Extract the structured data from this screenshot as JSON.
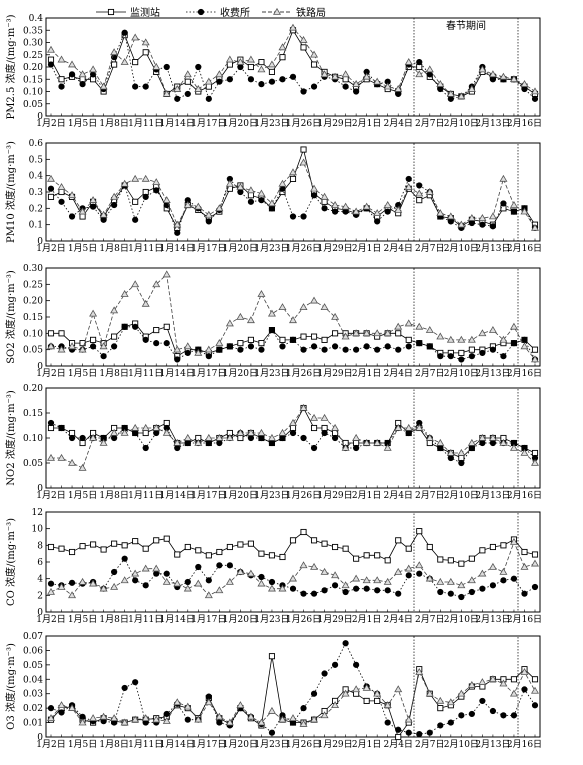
{
  "legend": [
    {
      "name": "监测站",
      "marker": "square",
      "dash": "solid"
    },
    {
      "name": "收费所",
      "marker": "circle",
      "dash": "dotted"
    },
    {
      "name": "铁路局",
      "marker": "triangle",
      "dash": "dashed"
    }
  ],
  "annotation": "春节期间",
  "x_ticks": [
    "1月2日",
    "1月5日",
    "1月8日",
    "1月11日",
    "1月14日",
    "1月17日",
    "1月20日",
    "1月23日",
    "1月26日",
    "1月29日",
    "2月1日",
    "2月4日",
    "2月7日",
    "2月10日",
    "2月13日",
    "2月16日"
  ],
  "chart_data": [
    {
      "type": "line",
      "ylabel": "PM2.5 浓度/(mg·m⁻³)",
      "ylim": [
        0,
        0.4
      ],
      "yticks": [
        "0",
        "0.05",
        "0.10",
        "0.15",
        "0.20",
        "0.25",
        "0.30",
        "0.35",
        "0.4"
      ],
      "series": [
        {
          "name": "监测站",
          "values": [
            0.23,
            0.15,
            0.16,
            0.15,
            0.15,
            0.1,
            0.21,
            0.33,
            0.22,
            0.26,
            0.18,
            0.09,
            0.12,
            0.14,
            0.1,
            0.12,
            0.15,
            0.21,
            0.23,
            0.2,
            0.22,
            0.18,
            0.24,
            0.35,
            0.28,
            0.21,
            0.18,
            0.16,
            0.15,
            0.12,
            0.15,
            0.13,
            0.11,
            0.1,
            0.2,
            0.2,
            0.16,
            0.12,
            0.09,
            0.08,
            0.1,
            0.18,
            0.16,
            0.15,
            0.15,
            0.12,
            0.09
          ]
        },
        {
          "name": "收费所",
          "values": [
            0.21,
            0.12,
            0.17,
            0.13,
            0.17,
            0.11,
            0.24,
            0.34,
            0.12,
            0.12,
            0.19,
            0.2,
            0.07,
            0.09,
            0.2,
            0.07,
            0.14,
            0.15,
            0.2,
            0.15,
            0.13,
            0.14,
            0.15,
            0.16,
            0.1,
            0.12,
            0.16,
            0.15,
            0.12,
            0.1,
            0.18,
            0.13,
            0.14,
            0.09,
            0.21,
            0.22,
            0.17,
            0.11,
            0.07,
            0.08,
            0.12,
            0.2,
            0.15,
            0.15,
            0.15,
            0.11,
            0.07
          ]
        },
        {
          "name": "铁路局",
          "values": [
            0.27,
            0.23,
            0.21,
            0.17,
            0.19,
            0.12,
            0.26,
            0.22,
            0.32,
            0.3,
            0.2,
            0.09,
            0.11,
            0.17,
            0.11,
            0.14,
            0.17,
            0.23,
            0.22,
            0.23,
            0.19,
            0.21,
            0.28,
            0.36,
            0.31,
            0.25,
            0.17,
            0.16,
            0.17,
            0.13,
            0.16,
            0.14,
            0.12,
            0.11,
            0.22,
            0.17,
            0.19,
            0.13,
            0.09,
            0.08,
            0.11,
            0.19,
            0.17,
            0.16,
            0.15,
            0.13,
            0.1
          ]
        }
      ]
    },
    {
      "type": "line",
      "ylabel": "PM10 浓度/(mg·m⁻³)",
      "ylim": [
        0,
        0.6
      ],
      "yticks": [
        "0",
        "0.1",
        "0.2",
        "0.3",
        "0.4",
        "0.5",
        "0.6"
      ],
      "series": [
        {
          "name": "监测站",
          "values": [
            0.27,
            0.3,
            0.27,
            0.15,
            0.24,
            0.15,
            0.25,
            0.34,
            0.24,
            0.3,
            0.33,
            0.2,
            0.08,
            0.22,
            0.19,
            0.14,
            0.18,
            0.32,
            0.34,
            0.28,
            0.26,
            0.2,
            0.3,
            0.38,
            0.56,
            0.29,
            0.24,
            0.2,
            0.19,
            0.17,
            0.2,
            0.15,
            0.2,
            0.17,
            0.32,
            0.25,
            0.28,
            0.15,
            0.14,
            0.09,
            0.13,
            0.12,
            0.1,
            0.2,
            0.18,
            0.2,
            0.1
          ]
        },
        {
          "name": "收费所",
          "values": [
            0.32,
            0.24,
            0.15,
            0.2,
            0.21,
            0.13,
            0.22,
            0.34,
            0.13,
            0.27,
            0.31,
            0.22,
            0.05,
            0.25,
            0.2,
            0.12,
            0.19,
            0.38,
            0.3,
            0.24,
            0.25,
            0.2,
            0.32,
            0.15,
            0.15,
            0.28,
            0.2,
            0.18,
            0.18,
            0.16,
            0.2,
            0.12,
            0.18,
            0.22,
            0.38,
            0.34,
            0.3,
            0.15,
            0.12,
            0.08,
            0.11,
            0.1,
            0.09,
            0.23,
            0.18,
            0.2,
            0.08
          ]
        },
        {
          "name": "铁路局",
          "values": [
            0.38,
            0.33,
            0.28,
            0.18,
            0.25,
            0.16,
            0.27,
            0.35,
            0.38,
            0.38,
            0.36,
            0.25,
            0.1,
            0.22,
            0.21,
            0.16,
            0.2,
            0.35,
            0.33,
            0.31,
            0.29,
            0.23,
            0.35,
            0.42,
            0.48,
            0.32,
            0.27,
            0.22,
            0.21,
            0.18,
            0.21,
            0.17,
            0.22,
            0.19,
            0.33,
            0.29,
            0.3,
            0.17,
            0.15,
            0.1,
            0.14,
            0.14,
            0.15,
            0.38,
            0.22,
            0.18,
            0.08
          ]
        }
      ]
    },
    {
      "type": "line",
      "ylabel": "SO2 浓度/(mg·m⁻³)",
      "ylim": [
        0,
        0.3
      ],
      "yticks": [
        "0",
        "0.05",
        "0.10",
        "0.15",
        "0.20",
        "0.25",
        "0.30"
      ],
      "series": [
        {
          "name": "监测站",
          "values": [
            0.1,
            0.1,
            0.07,
            0.07,
            0.08,
            0.07,
            0.09,
            0.12,
            0.13,
            0.09,
            0.11,
            0.12,
            0.03,
            0.05,
            0.05,
            0.04,
            0.05,
            0.06,
            0.07,
            0.08,
            0.07,
            0.11,
            0.08,
            0.08,
            0.09,
            0.09,
            0.08,
            0.1,
            0.1,
            0.1,
            0.1,
            0.09,
            0.1,
            0.1,
            0.08,
            0.07,
            0.06,
            0.04,
            0.04,
            0.04,
            0.05,
            0.05,
            0.06,
            0.07,
            0.07,
            0.08,
            0.05
          ]
        },
        {
          "name": "收费所",
          "values": [
            0.06,
            0.06,
            0.05,
            0.05,
            0.06,
            0.03,
            0.06,
            0.12,
            0.12,
            0.08,
            0.07,
            0.07,
            0.02,
            0.04,
            0.05,
            0.03,
            0.05,
            0.06,
            0.05,
            0.06,
            0.05,
            0.11,
            0.06,
            0.08,
            0.05,
            0.06,
            0.05,
            0.06,
            0.05,
            0.05,
            0.06,
            0.05,
            0.06,
            0.05,
            0.06,
            0.07,
            0.06,
            0.03,
            0.03,
            0.02,
            0.03,
            0.04,
            0.05,
            0.03,
            0.07,
            0.08,
            0.02
          ]
        },
        {
          "name": "铁路局",
          "values": [
            0.06,
            0.05,
            0.06,
            0.05,
            0.16,
            0.06,
            0.17,
            0.22,
            0.25,
            0.19,
            0.25,
            0.28,
            0.05,
            0.06,
            0.04,
            0.05,
            0.07,
            0.13,
            0.15,
            0.14,
            0.22,
            0.16,
            0.18,
            0.14,
            0.18,
            0.2,
            0.18,
            0.15,
            0.09,
            0.1,
            0.1,
            0.1,
            0.1,
            0.12,
            0.13,
            0.12,
            0.11,
            0.09,
            0.08,
            0.08,
            0.08,
            0.1,
            0.11,
            0.08,
            0.12,
            0.06,
            0.02
          ]
        }
      ]
    },
    {
      "type": "line",
      "ylabel": "NO2 浓度/(mg·m⁻³)",
      "ylim": [
        0,
        0.2
      ],
      "yticks": [
        "0",
        "0.05",
        "0.10",
        "0.15",
        "0.20"
      ],
      "series": [
        {
          "name": "监测站",
          "values": [
            0.12,
            0.12,
            0.11,
            0.09,
            0.11,
            0.1,
            0.12,
            0.12,
            0.11,
            0.11,
            0.12,
            0.13,
            0.09,
            0.09,
            0.1,
            0.09,
            0.1,
            0.11,
            0.1,
            0.11,
            0.1,
            0.09,
            0.1,
            0.12,
            0.16,
            0.12,
            0.12,
            0.11,
            0.09,
            0.09,
            0.09,
            0.09,
            0.09,
            0.13,
            0.11,
            0.12,
            0.09,
            0.08,
            0.07,
            0.06,
            0.08,
            0.1,
            0.1,
            0.1,
            0.09,
            0.08,
            0.07
          ]
        },
        {
          "name": "收费所",
          "values": [
            0.13,
            0.12,
            0.1,
            0.1,
            0.1,
            0.1,
            0.1,
            0.12,
            0.11,
            0.08,
            0.11,
            0.12,
            0.08,
            0.09,
            0.09,
            0.09,
            0.09,
            0.1,
            0.11,
            0.1,
            0.1,
            0.09,
            0.1,
            0.11,
            0.1,
            0.08,
            0.11,
            0.1,
            0.08,
            0.08,
            0.09,
            0.09,
            0.09,
            0.12,
            0.11,
            0.13,
            0.1,
            0.08,
            0.06,
            0.05,
            0.08,
            0.09,
            0.09,
            0.09,
            0.09,
            0.08,
            0.06
          ]
        },
        {
          "name": "铁路局",
          "values": [
            0.06,
            0.06,
            0.05,
            0.04,
            0.1,
            0.09,
            0.11,
            0.11,
            0.12,
            0.12,
            0.12,
            0.11,
            0.09,
            0.1,
            0.09,
            0.1,
            0.1,
            0.1,
            0.11,
            0.11,
            0.11,
            0.1,
            0.11,
            0.13,
            0.16,
            0.14,
            0.14,
            0.12,
            0.08,
            0.1,
            0.09,
            0.09,
            0.08,
            0.12,
            0.12,
            0.12,
            0.1,
            0.09,
            0.07,
            0.07,
            0.09,
            0.1,
            0.1,
            0.09,
            0.08,
            0.07,
            0.05
          ]
        }
      ]
    },
    {
      "type": "line",
      "ylabel": "CO 浓度/(mg·m⁻³)",
      "ylim": [
        0,
        12
      ],
      "yticks": [
        "0",
        "2",
        "4",
        "6",
        "8",
        "10",
        "12"
      ],
      "series": [
        {
          "name": "监测站",
          "values": [
            7.8,
            7.6,
            7.2,
            7.9,
            8.1,
            7.5,
            8.2,
            8.0,
            8.5,
            7.6,
            8.6,
            8.8,
            6.9,
            7.8,
            7.4,
            6.8,
            7.2,
            7.8,
            8.1,
            8.2,
            7.0,
            6.8,
            6.6,
            8.6,
            9.6,
            8.6,
            8.2,
            7.8,
            7.6,
            6.4,
            6.8,
            6.8,
            6.2,
            8.6,
            7.6,
            9.7,
            7.8,
            6.3,
            6.2,
            5.8,
            6.4,
            7.4,
            7.8,
            8.0,
            8.7,
            7.2,
            6.9
          ]
        },
        {
          "name": "收费所",
          "values": [
            3.4,
            3.2,
            3.5,
            3.4,
            3.6,
            2.8,
            4.8,
            6.4,
            3.8,
            3.2,
            4.6,
            4.6,
            3.0,
            3.6,
            5.4,
            3.8,
            5.6,
            5.6,
            4.8,
            4.4,
            4.2,
            3.6,
            3.2,
            2.8,
            2.2,
            2.2,
            2.6,
            3.2,
            2.4,
            2.8,
            2.8,
            2.6,
            2.6,
            2.2,
            4.4,
            4.6,
            4.0,
            2.4,
            2.2,
            1.8,
            2.4,
            2.8,
            3.2,
            3.8,
            4.0,
            2.2,
            3.0
          ]
        },
        {
          "name": "铁路局",
          "values": [
            2.4,
            3.0,
            2.0,
            3.6,
            3.4,
            2.8,
            3.0,
            3.8,
            4.6,
            5.2,
            5.2,
            3.6,
            3.4,
            2.8,
            3.4,
            2.0,
            2.6,
            3.6,
            4.8,
            4.6,
            3.4,
            2.8,
            2.8,
            4.0,
            5.6,
            5.4,
            4.8,
            4.4,
            3.2,
            4.0,
            3.8,
            3.8,
            3.6,
            4.8,
            5.2,
            5.6,
            4.0,
            3.6,
            3.6,
            3.2,
            3.8,
            4.6,
            5.4,
            4.8,
            8.4,
            5.4,
            5.8
          ]
        }
      ]
    },
    {
      "type": "line",
      "ylabel": "O3 浓度/(mg·m⁻³)",
      "ylim": [
        0,
        0.07
      ],
      "yticks": [
        "0",
        "0.01",
        "0.02",
        "0.03",
        "0.04",
        "0.05",
        "0.06",
        "0.07"
      ],
      "series": [
        {
          "name": "监测站",
          "values": [
            0.012,
            0.02,
            0.021,
            0.012,
            0.01,
            0.013,
            0.011,
            0.01,
            0.012,
            0.012,
            0.013,
            0.014,
            0.022,
            0.02,
            0.013,
            0.027,
            0.013,
            0.009,
            0.02,
            0.013,
            0.008,
            0.056,
            0.012,
            0.01,
            0.01,
            0.012,
            0.018,
            0.025,
            0.033,
            0.03,
            0.025,
            0.025,
            0.022,
            0.0,
            0.01,
            0.047,
            0.03,
            0.02,
            0.022,
            0.028,
            0.035,
            0.035,
            0.04,
            0.04,
            0.04,
            0.047,
            0.04
          ]
        },
        {
          "name": "收费所",
          "values": [
            0.02,
            0.017,
            0.022,
            0.014,
            0.011,
            0.011,
            0.01,
            0.034,
            0.038,
            0.01,
            0.01,
            0.016,
            0.023,
            0.012,
            0.012,
            0.028,
            0.01,
            0.008,
            0.02,
            0.014,
            0.009,
            0.003,
            0.015,
            0.01,
            0.02,
            0.03,
            0.044,
            0.05,
            0.065,
            0.05,
            0.035,
            0.03,
            0.01,
            0.005,
            0.003,
            0.002,
            0.003,
            0.008,
            0.01,
            0.015,
            0.016,
            0.025,
            0.018,
            0.015,
            0.015,
            0.033,
            0.022
          ]
        },
        {
          "name": "铁路局",
          "values": [
            0.013,
            0.022,
            0.02,
            0.01,
            0.013,
            0.014,
            0.013,
            0.01,
            0.012,
            0.013,
            0.012,
            0.011,
            0.024,
            0.021,
            0.012,
            0.024,
            0.014,
            0.01,
            0.022,
            0.014,
            0.01,
            0.018,
            0.012,
            0.013,
            0.009,
            0.012,
            0.015,
            0.022,
            0.03,
            0.033,
            0.034,
            0.03,
            0.022,
            0.033,
            0.012,
            0.045,
            0.03,
            0.025,
            0.024,
            0.03,
            0.036,
            0.038,
            0.04,
            0.037,
            0.03,
            0.045,
            0.032
          ]
        }
      ]
    }
  ]
}
